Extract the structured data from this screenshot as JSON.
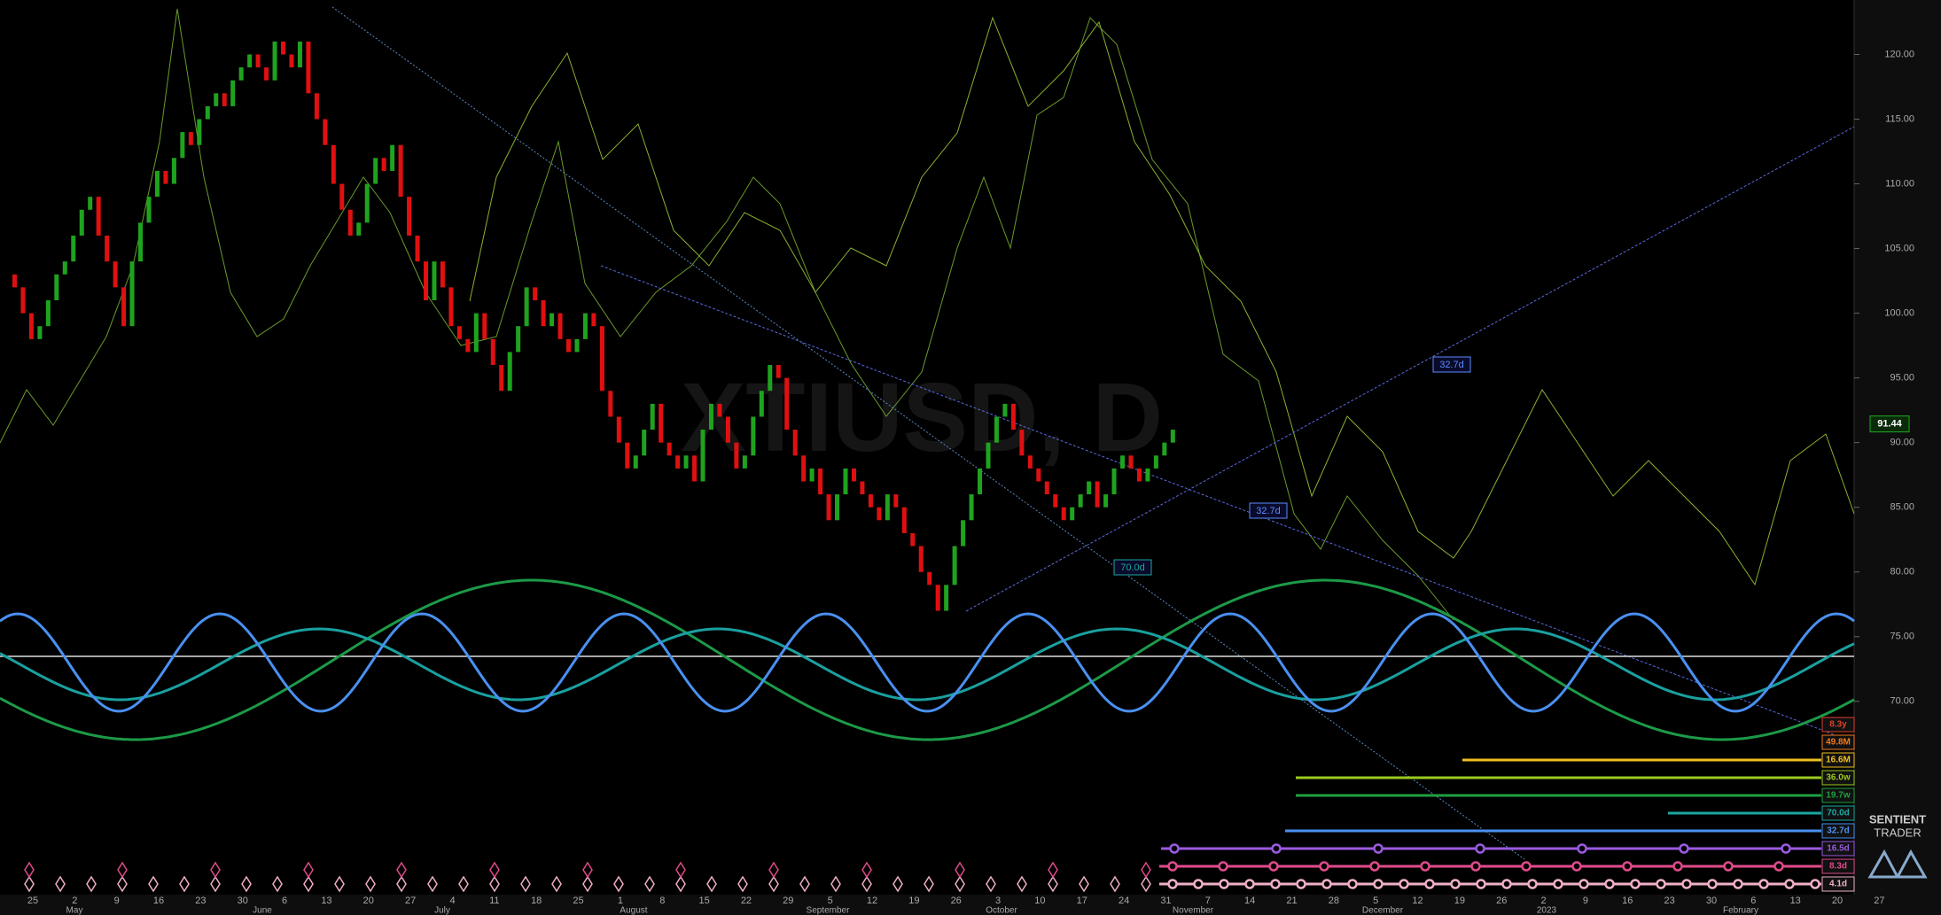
{
  "chart_data": {
    "type": "candlestick",
    "watermark": "XTIUSD, D",
    "ylim": [
      55.06,
      124.21
    ],
    "yticks": [
      {
        "value": 70,
        "label": "70.00"
      },
      {
        "value": 75,
        "label": "75.00"
      },
      {
        "value": 80,
        "label": "80.00"
      },
      {
        "value": 85,
        "label": "85.00"
      },
      {
        "value": 90,
        "label": "90.00"
      },
      {
        "value": 95,
        "label": "95.00"
      },
      {
        "value": 100,
        "label": "100.00"
      },
      {
        "value": 105,
        "label": "105.00"
      },
      {
        "value": 110,
        "label": "110.00"
      },
      {
        "value": 115,
        "label": "115.00"
      },
      {
        "value": 120,
        "label": "120.00"
      }
    ],
    "week_labels": [
      "25",
      "2",
      "9",
      "16",
      "23",
      "30",
      "6",
      "13",
      "20",
      "27",
      "4",
      "11",
      "18",
      "25",
      "1",
      "8",
      "15",
      "22",
      "29",
      "5",
      "12",
      "19",
      "26",
      "3",
      "10",
      "17",
      "24",
      "31",
      "7",
      "14",
      "21",
      "28",
      "5",
      "12",
      "19",
      "26",
      "2",
      "9",
      "16",
      "23",
      "30",
      "6",
      "13",
      "20",
      "27"
    ],
    "month_labels": [
      "May",
      "June",
      "July",
      "August",
      "September",
      "October",
      "November",
      "December",
      "2023",
      "February"
    ],
    "close": [
      103,
      102,
      100,
      98,
      99,
      101,
      103,
      104,
      106,
      108,
      109,
      106,
      104,
      102,
      99,
      104,
      107,
      109,
      111,
      110,
      112,
      114,
      113,
      115,
      116,
      117,
      116,
      118,
      119,
      120,
      119,
      118,
      121,
      120,
      119,
      121,
      117,
      115,
      113,
      110,
      108,
      106,
      107,
      110,
      112,
      111,
      113,
      109,
      106,
      104,
      101,
      104,
      102,
      99,
      98,
      97,
      100,
      98,
      96,
      94,
      97,
      99,
      102,
      101,
      99,
      100,
      98,
      97,
      98,
      100,
      99,
      94,
      92,
      90,
      88,
      89,
      91,
      93,
      90,
      89,
      88,
      89,
      87,
      91,
      93,
      92,
      90,
      88,
      89,
      92,
      94,
      96,
      95,
      91,
      89,
      87,
      88,
      86,
      84,
      86,
      88,
      87,
      86,
      85,
      84,
      86,
      85,
      83,
      82,
      80,
      79,
      77,
      79,
      82,
      84,
      86,
      88,
      90,
      92,
      93,
      91,
      89,
      88,
      87,
      86,
      85,
      84,
      85,
      86,
      87,
      85,
      86,
      88,
      89,
      88,
      87,
      88,
      89,
      90,
      91
    ],
    "up_color": "#1fa31f",
    "down_color": "#e01010",
    "last_price": {
      "value": 91.44,
      "label": "91.44"
    },
    "annotations": [
      {
        "text": "32.7d",
        "color": "#5a8cff"
      },
      {
        "text": "32.7d",
        "color": "#5a8cff"
      },
      {
        "text": "70.0d",
        "color": "#1aa8a0"
      }
    ],
    "cycle_labels": [
      {
        "text": "8.3y",
        "color": "#e0402a"
      },
      {
        "text": "49.8M",
        "color": "#f07a20"
      },
      {
        "text": "16.6M",
        "color": "#f0c020"
      },
      {
        "text": "36.0w",
        "color": "#9ac820"
      },
      {
        "text": "19.7w",
        "color": "#20a040"
      },
      {
        "text": "70.0d",
        "color": "#1aa8a0"
      },
      {
        "text": "32.7d",
        "color": "#4a90f0"
      },
      {
        "text": "16.5d",
        "color": "#9a5ae0"
      },
      {
        "text": "8.3d",
        "color": "#e04a8a"
      },
      {
        "text": "4.1d",
        "color": "#f0b0c8"
      }
    ],
    "logo": [
      "SENTIENT",
      "TRADER"
    ]
  }
}
